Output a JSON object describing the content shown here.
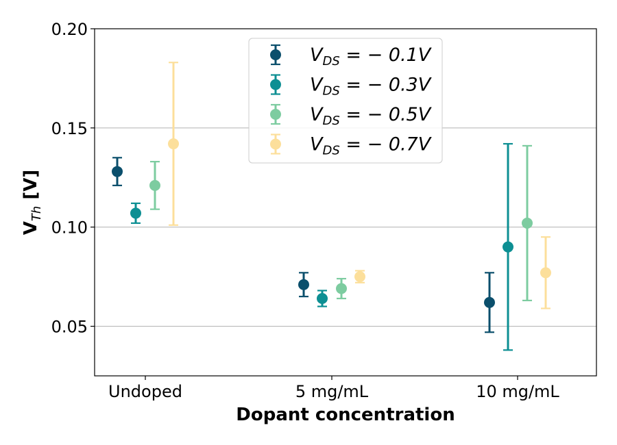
{
  "chart_data": {
    "type": "scatter",
    "title": "",
    "xlabel": "Dopant concentration",
    "ylabel": "V",
    "ylabel_sub": "Th",
    "ylabel_unit": " [V]",
    "categories": [
      "Undoped",
      "5 mg/mL",
      "10 mg/mL"
    ],
    "ylim": [
      0.025,
      0.2
    ],
    "yticks": [
      0.05,
      0.1,
      0.15,
      0.2
    ],
    "ytick_labels": [
      "0.05",
      "0.10",
      "0.15",
      "0.20"
    ],
    "grid": "horizontal",
    "legend_position": "top-center",
    "series": [
      {
        "name": "V_DS = −0.1V",
        "legend_parts": {
          "sym": "V",
          "sub": "DS",
          "rest": " = − 0.1V"
        },
        "color": "#0b4f6c",
        "values": [
          0.128,
          0.071,
          0.062
        ],
        "err_low": [
          0.121,
          0.065,
          0.047
        ],
        "err_high": [
          0.135,
          0.077,
          0.077
        ]
      },
      {
        "name": "V_DS = −0.3V",
        "legend_parts": {
          "sym": "V",
          "sub": "DS",
          "rest": " = − 0.3V"
        },
        "color": "#0d8f93",
        "values": [
          0.107,
          0.064,
          0.09
        ],
        "err_low": [
          0.102,
          0.06,
          0.038
        ],
        "err_high": [
          0.112,
          0.068,
          0.142
        ]
      },
      {
        "name": "V_DS = −0.5V",
        "legend_parts": {
          "sym": "V",
          "sub": "DS",
          "rest": " = − 0.5V"
        },
        "color": "#7dcca0",
        "values": [
          0.121,
          0.069,
          0.102
        ],
        "err_low": [
          0.109,
          0.064,
          0.063
        ],
        "err_high": [
          0.133,
          0.074,
          0.141
        ]
      },
      {
        "name": "V_DS = −0.7V",
        "legend_parts": {
          "sym": "V",
          "sub": "DS",
          "rest": " = − 0.7V"
        },
        "color": "#fcdf9b",
        "values": [
          0.142,
          0.075,
          0.077
        ],
        "err_low": [
          0.101,
          0.072,
          0.059
        ],
        "err_high": [
          0.183,
          0.078,
          0.095
        ]
      }
    ]
  }
}
